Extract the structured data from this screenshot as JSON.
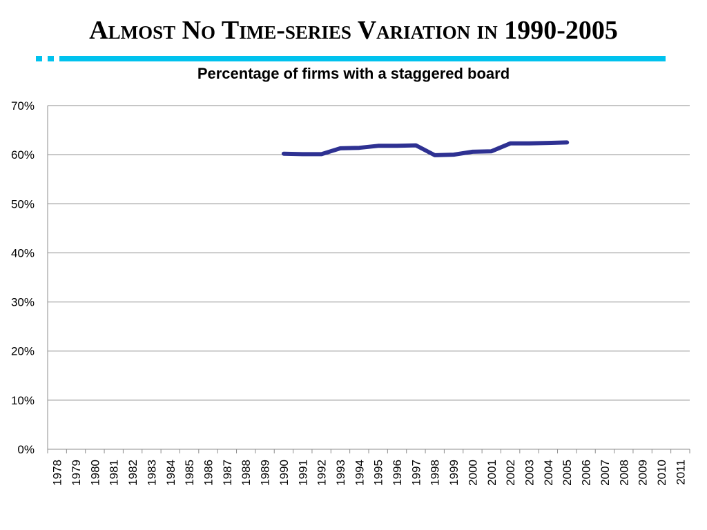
{
  "slide": {
    "title": "Almost No Time-series Variation in 1990-2005",
    "accent_color": "#00C2EE"
  },
  "chart_data": {
    "type": "line",
    "title": "Percentage of firms with a staggered board",
    "xlabel": "",
    "ylabel": "",
    "x": [
      "1978",
      "1979",
      "1980",
      "1981",
      "1982",
      "1983",
      "1984",
      "1985",
      "1986",
      "1987",
      "1988",
      "1989",
      "1990",
      "1991",
      "1992",
      "1993",
      "1994",
      "1995",
      "1996",
      "1997",
      "1998",
      "1999",
      "2000",
      "2001",
      "2002",
      "2003",
      "2004",
      "2005",
      "2006",
      "2007",
      "2008",
      "2009",
      "2010",
      "2011"
    ],
    "series": [
      {
        "name": "",
        "color": "#2E3192",
        "values": [
          null,
          null,
          null,
          null,
          null,
          null,
          null,
          null,
          null,
          null,
          null,
          null,
          60.2,
          60.1,
          60.1,
          61.3,
          61.4,
          61.8,
          61.8,
          61.9,
          59.9,
          60.0,
          60.6,
          60.7,
          62.3,
          62.3,
          62.4,
          62.5,
          null,
          null,
          null,
          null,
          null,
          null
        ]
      }
    ],
    "ylim": [
      0,
      70
    ],
    "yticks": [
      0,
      10,
      20,
      30,
      40,
      50,
      60,
      70
    ],
    "ytick_labels": [
      "0%",
      "10%",
      "20%",
      "30%",
      "40%",
      "50%",
      "60%",
      "70%"
    ],
    "grid": "horizontal",
    "legend": "none"
  }
}
